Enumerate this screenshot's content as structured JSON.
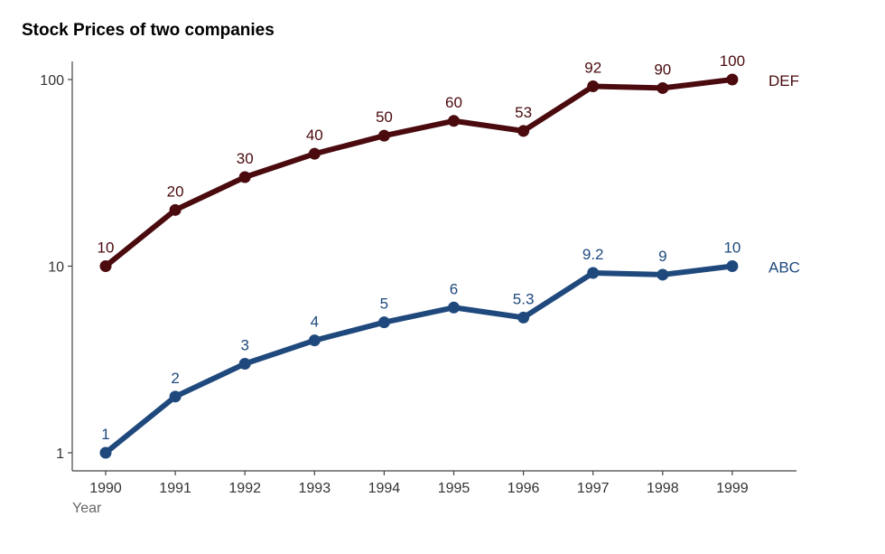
{
  "chart_data": {
    "type": "line",
    "title": "Stock Prices of two companies",
    "xlabel": "Year",
    "ylabel": "",
    "x": [
      1990,
      1991,
      1992,
      1993,
      1994,
      1995,
      1996,
      1997,
      1998,
      1999
    ],
    "y_scale": "log",
    "y_ticks": [
      1,
      10,
      100
    ],
    "ylim": [
      0.8,
      125
    ],
    "grid": false,
    "legend": "direct labels at right end of lines",
    "series": [
      {
        "name": "DEF",
        "color": "#4a0a0e",
        "values": [
          10,
          20,
          30,
          40,
          50,
          60,
          53,
          92,
          90,
          100
        ],
        "labels": [
          "10",
          "20",
          "30",
          "40",
          "50",
          "60",
          "53",
          "92",
          "90",
          "100"
        ]
      },
      {
        "name": "ABC",
        "color": "#1f497d",
        "values": [
          1,
          2,
          3,
          4,
          5,
          6,
          5.3,
          9.2,
          9,
          10
        ],
        "labels": [
          "1",
          "2",
          "3",
          "4",
          "5",
          "6",
          "5.3",
          "9.2",
          "9",
          "10"
        ]
      }
    ]
  }
}
